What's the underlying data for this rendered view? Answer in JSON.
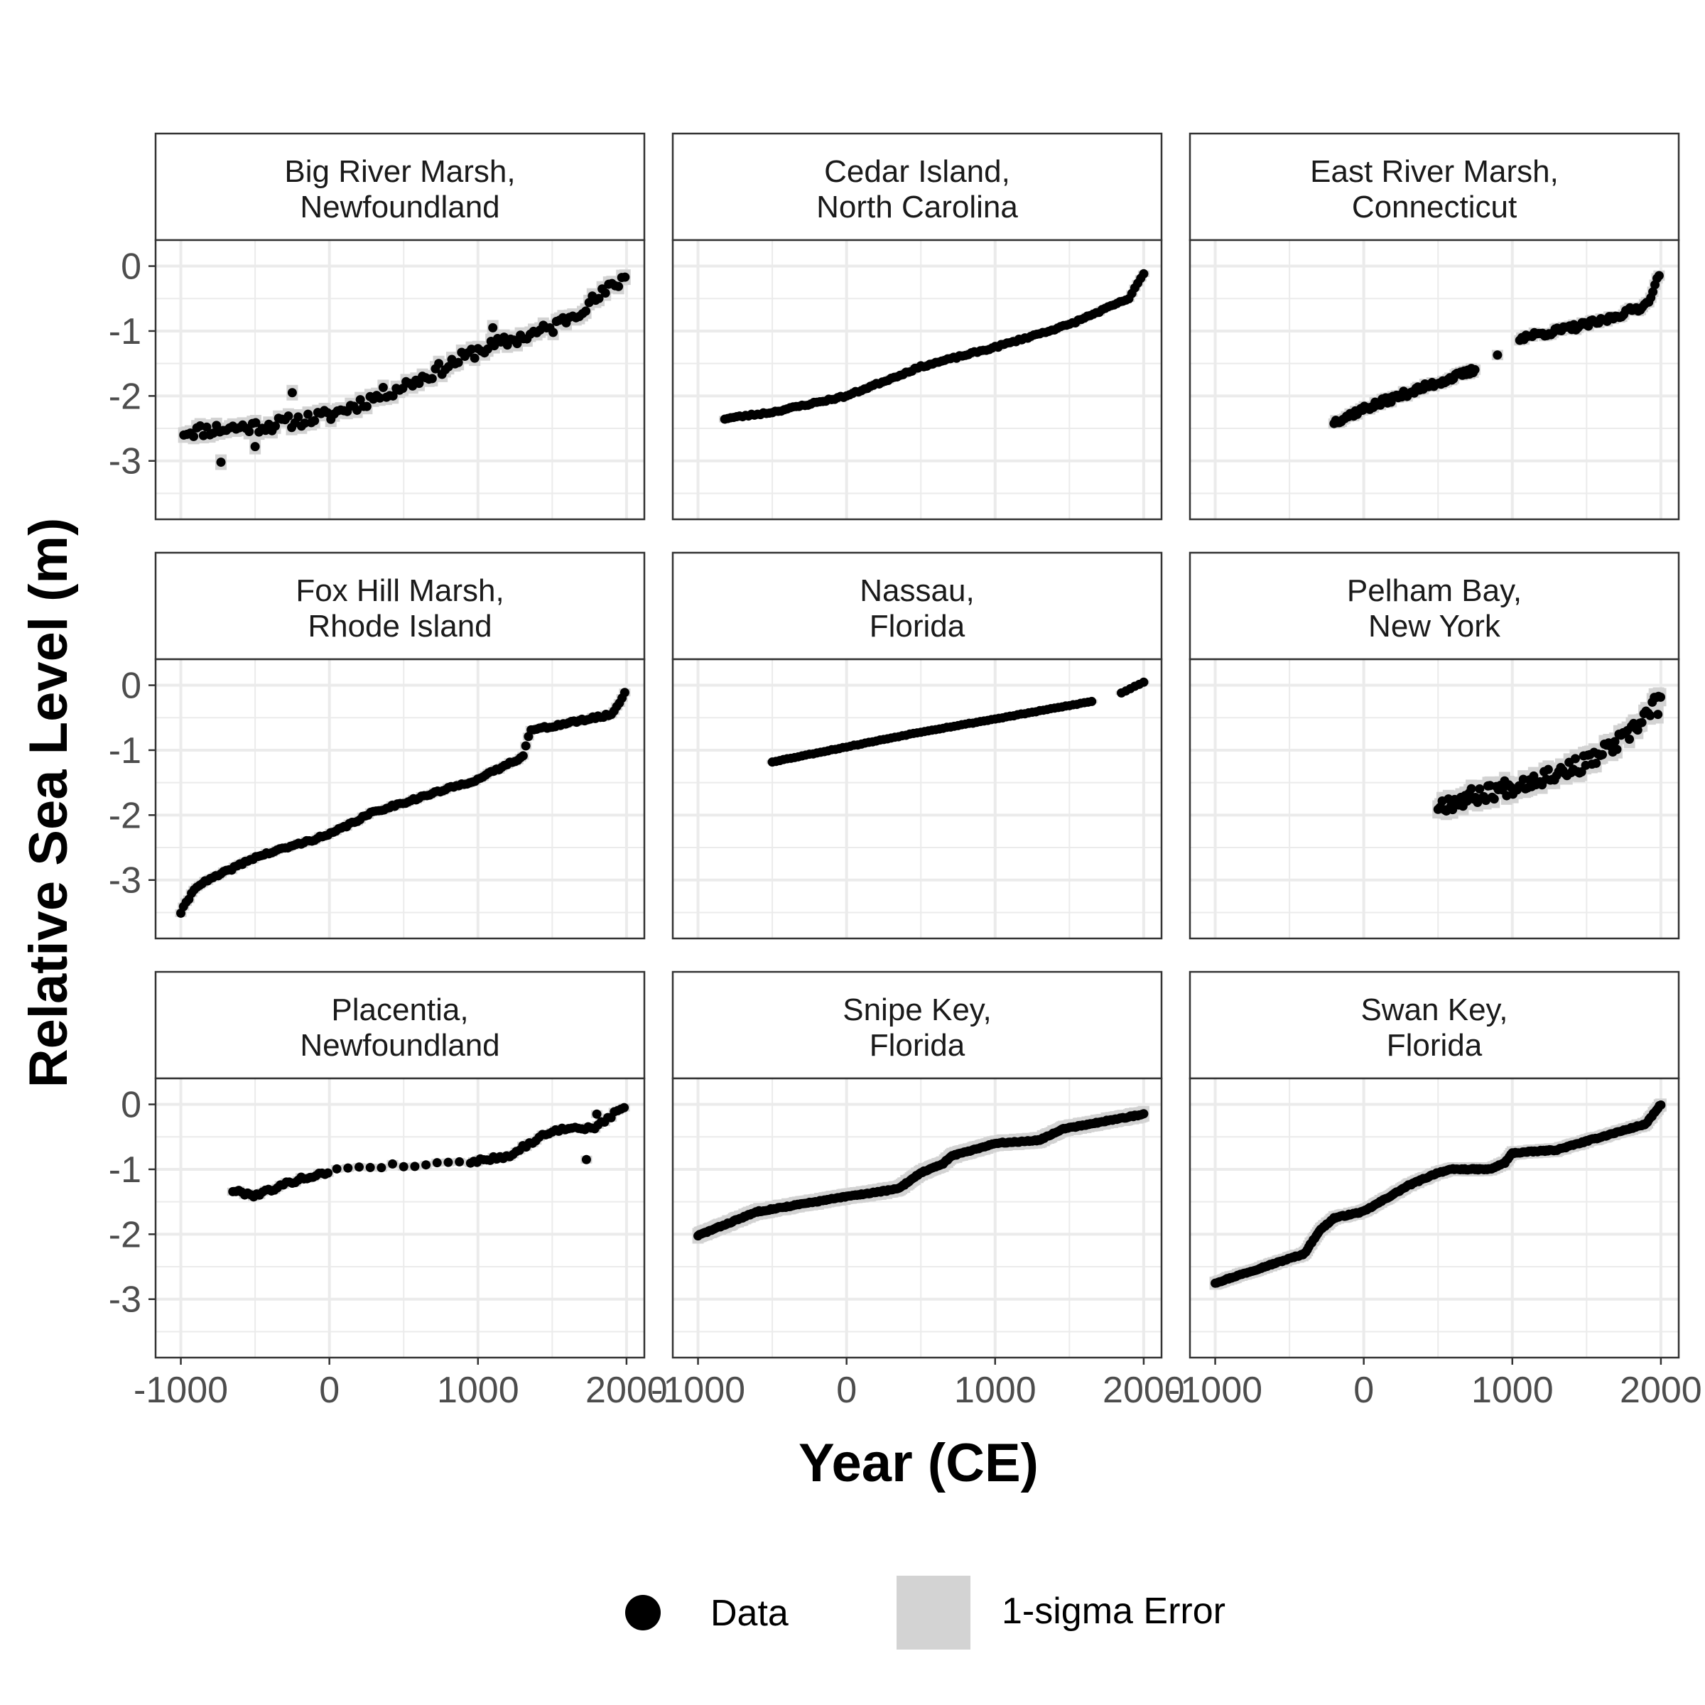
{
  "chart_data": {
    "type": "scatter",
    "xlabel": "Year (CE)",
    "ylabel": "Relative Sea Level (m)",
    "xlim": [
      -1170,
      2120
    ],
    "ylim": [
      -3.9,
      0.4
    ],
    "x_ticks": [
      -1000,
      0,
      1000,
      2000
    ],
    "x_tick_labels": [
      "-1000",
      "0",
      "1000",
      "2000"
    ],
    "y_ticks": [
      0,
      -1,
      -2,
      -3
    ],
    "y_tick_labels": [
      "0",
      "-1",
      "-2",
      "-3"
    ],
    "grid": true,
    "legend_position": "bottom",
    "legend": [
      {
        "label": "Data",
        "symbol": "point",
        "color": "#000000"
      },
      {
        "label": "1-sigma Error",
        "symbol": "fill",
        "color": "#d3d3d3"
      }
    ],
    "colors": {
      "point": "#000000",
      "error": "#d3d3d3",
      "strip_bg": "#ffffff",
      "grid": "#ebebeb",
      "border": "#333333"
    },
    "panels": [
      {
        "title_line1": "Big River Marsh,",
        "title_line2": "Newfoundland",
        "error": 0.12,
        "noise": 0.1,
        "seed": 11,
        "segments": [
          {
            "x": [
              -980,
              -400,
              0,
              600,
              1000,
              1500,
              1800,
              2000
            ],
            "y": [
              -2.55,
              -2.45,
              -2.3,
              -1.75,
              -1.3,
              -0.95,
              -0.5,
              -0.15
            ],
            "step": 22
          }
        ],
        "extras": [
          [
            -730,
            -3.02
          ],
          [
            -500,
            -2.78
          ],
          [
            -250,
            -1.95
          ],
          [
            1100,
            -0.95
          ]
        ]
      },
      {
        "title_line1": "Cedar Island,",
        "title_line2": "North Carolina",
        "error": 0.05,
        "noise": 0.015,
        "seed": 23,
        "segments": [
          {
            "x": [
              -820,
              -500,
              -400,
              0,
              500,
              1000,
              1500,
              1900,
              2000
            ],
            "y": [
              -2.35,
              -2.25,
              -2.2,
              -2.0,
              -1.55,
              -1.25,
              -0.9,
              -0.5,
              -0.12
            ],
            "step": 20
          }
        ],
        "extras": []
      },
      {
        "title_line1": "East River Marsh,",
        "title_line2": "Connecticut",
        "error": 0.08,
        "noise": 0.05,
        "seed": 37,
        "segments": [
          {
            "x": [
              -200,
              0,
              300,
              750
            ],
            "y": [
              -2.4,
              -2.2,
              -1.95,
              -1.6
            ],
            "step": 12
          },
          {
            "x": [
              1050,
              1300,
              1600,
              1900,
              2000
            ],
            "y": [
              -1.1,
              -1.0,
              -0.85,
              -0.6,
              -0.1
            ],
            "step": 14
          }
        ],
        "extras": [
          [
            900,
            -1.37
          ]
        ]
      },
      {
        "title_line1": "Fox Hill Marsh,",
        "title_line2": "Rhode Island",
        "error": 0.06,
        "noise": 0.02,
        "seed": 41,
        "segments": [
          {
            "x": [
              -1000,
              -900,
              -500,
              0,
              300,
              1000,
              1300,
              1350,
              1900,
              2000
            ],
            "y": [
              -3.5,
              -3.1,
              -2.65,
              -2.3,
              -1.95,
              -1.45,
              -1.1,
              -0.7,
              -0.45,
              -0.08
            ],
            "step": 18
          }
        ],
        "extras": []
      },
      {
        "title_line1": "Nassau,",
        "title_line2": "Florida",
        "error": 0.03,
        "noise": 0.005,
        "seed": 53,
        "segments": [
          {
            "x": [
              -500,
              0,
              500,
              1000,
              1650
            ],
            "y": [
              -1.18,
              -0.95,
              -0.72,
              -0.52,
              -0.25
            ],
            "step": 25
          },
          {
            "x": [
              1850,
              2000
            ],
            "y": [
              -0.12,
              0.05
            ],
            "step": 30
          }
        ],
        "extras": []
      },
      {
        "title_line1": "Pelham Bay,",
        "title_line2": "New York",
        "error": 0.14,
        "noise": 0.13,
        "seed": 67,
        "segments": [
          {
            "x": [
              500,
              1000,
              1500,
              1800,
              2000
            ],
            "y": [
              -1.85,
              -1.55,
              -1.2,
              -0.75,
              -0.15
            ],
            "step": 14
          }
        ],
        "extras": [
          [
            1980,
            -0.45
          ]
        ]
      },
      {
        "title_line1": "Placentia,",
        "title_line2": "Newfoundland",
        "error": 0.06,
        "noise": 0.03,
        "seed": 79,
        "segments": [
          {
            "x": [
              -650,
              -500,
              -200,
              0
            ],
            "y": [
              -1.33,
              -1.4,
              -1.15,
              -1.05
            ],
            "step": 20
          },
          {
            "x": [
              50,
              900
            ],
            "y": [
              -0.98,
              -0.9
            ],
            "step": 75
          },
          {
            "x": [
              950,
              1200,
              1500,
              1800,
              2000
            ],
            "y": [
              -0.88,
              -0.8,
              -0.4,
              -0.35,
              0.0
            ],
            "step": 22
          }
        ],
        "extras": [
          [
            1730,
            -0.85
          ],
          [
            1800,
            -0.15
          ]
        ]
      },
      {
        "title_line1": "Snipe Key,",
        "title_line2": "Florida",
        "error": 0.12,
        "noise": 0.01,
        "seed": 83,
        "segments": [
          {
            "x": [
              -1000,
              -600,
              0,
              350,
              500,
              650,
              700,
              1000,
              1300,
              1450,
              2000
            ],
            "y": [
              -2.02,
              -1.65,
              -1.42,
              -1.3,
              -1.05,
              -0.92,
              -0.8,
              -0.6,
              -0.55,
              -0.38,
              -0.15
            ],
            "step": 10
          }
        ],
        "extras": []
      },
      {
        "title_line1": "Swan Key,",
        "title_line2": "Florida",
        "error": 0.1,
        "noise": 0.01,
        "seed": 97,
        "segments": [
          {
            "x": [
              -1000,
              -800,
              -400,
              -300,
              -200,
              0,
              300,
              500,
              600,
              850,
              950,
              1000,
              1300,
              1600,
              1900,
              2000
            ],
            "y": [
              -2.75,
              -2.6,
              -2.3,
              -1.95,
              -1.75,
              -1.65,
              -1.25,
              -1.05,
              -1.0,
              -1.0,
              -0.9,
              -0.75,
              -0.7,
              -0.5,
              -0.3,
              0.0
            ],
            "step": 10
          }
        ],
        "extras": []
      }
    ]
  }
}
